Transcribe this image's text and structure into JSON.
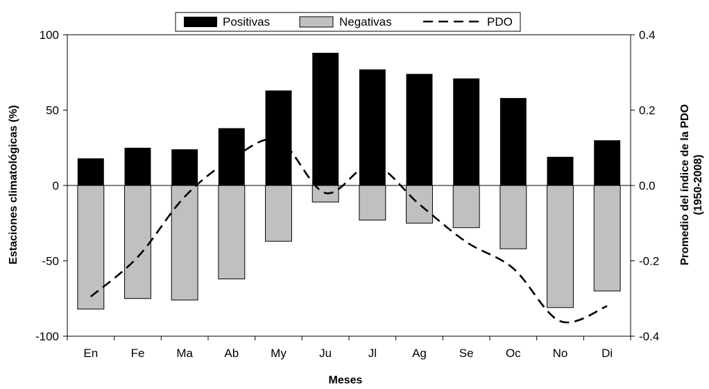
{
  "chart_data": {
    "type": "bar",
    "categories": [
      "En",
      "Fe",
      "Ma",
      "Ab",
      "My",
      "Ju",
      "Jl",
      "Ag",
      "Se",
      "Oc",
      "No",
      "Di"
    ],
    "series": [
      {
        "name": "Positivas",
        "axis": "left",
        "kind": "bar",
        "color": "#000000",
        "values": [
          18,
          25,
          24,
          38,
          63,
          88,
          77,
          74,
          71,
          58,
          19,
          30
        ]
      },
      {
        "name": "Negativas",
        "axis": "left",
        "kind": "bar",
        "color": "#c0c0c0",
        "values": [
          -82,
          -75,
          -76,
          -62,
          -37,
          -11,
          -23,
          -25,
          -28,
          -42,
          -81,
          -70
        ]
      },
      {
        "name": "PDO",
        "axis": "right",
        "kind": "line",
        "style": "dashed",
        "color": "#000000",
        "values": [
          -0.295,
          -0.19,
          -0.03,
          0.07,
          0.12,
          -0.02,
          0.055,
          -0.05,
          -0.15,
          -0.22,
          -0.36,
          -0.32
        ]
      }
    ],
    "xlabel": "Meses",
    "ylabel": "Estaciones climatológicas (%)",
    "ylabel_right_line1": "Promedio del índice de la PDO",
    "ylabel_right_line2": "(1950-2008)",
    "ylim": [
      -100,
      100
    ],
    "yticks": [
      "-100",
      "-50",
      "0",
      "50",
      "100"
    ],
    "ylim_right": [
      -0.4,
      0.4
    ],
    "yticks_right": [
      "-0.4",
      "-0.2",
      "0.0",
      "0.2",
      "0.4"
    ],
    "legend": [
      "Positivas",
      "Negativas",
      "PDO"
    ],
    "legend_position": "top-center",
    "grid": false
  }
}
